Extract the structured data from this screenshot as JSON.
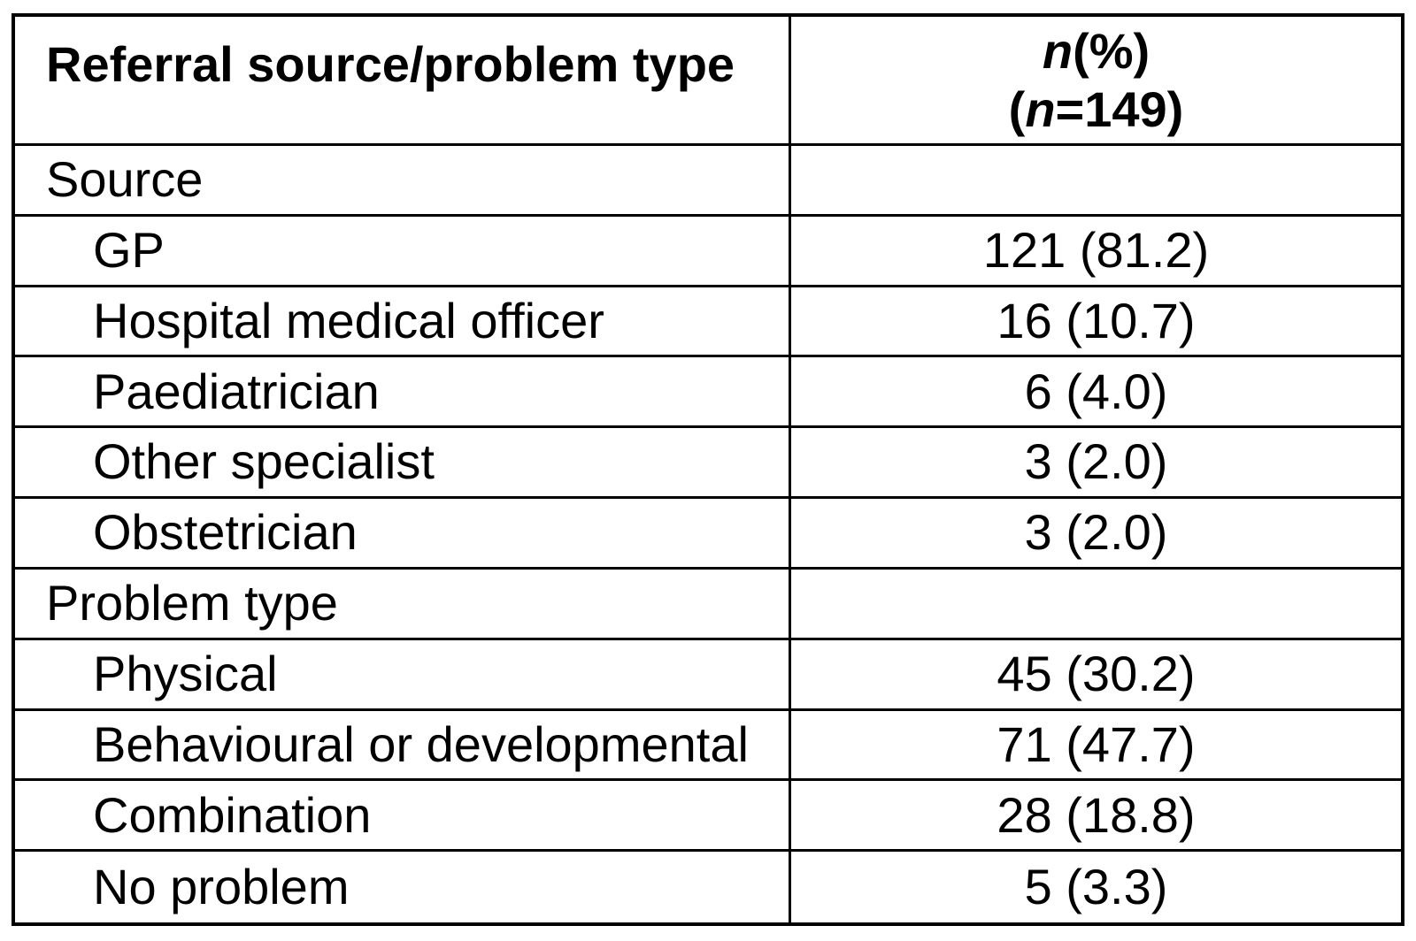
{
  "table": {
    "header": {
      "col1": "Referral source/problem type",
      "col2": {
        "line1_n": "n",
        "line1_rest": "(%)",
        "line2_open": "(",
        "line2_n": "n",
        "line2_rest": "=149)"
      }
    },
    "rows": [
      {
        "label": "Source",
        "value": "",
        "indent": false
      },
      {
        "label": "GP",
        "value": "121 (81.2)",
        "indent": true
      },
      {
        "label": "Hospital medical officer",
        "value": "16 (10.7)",
        "indent": true
      },
      {
        "label": "Paediatrician",
        "value": "6 (4.0)",
        "indent": true
      },
      {
        "label": "Other specialist",
        "value": "3 (2.0)",
        "indent": true
      },
      {
        "label": "Obstetrician",
        "value": "3 (2.0)",
        "indent": true
      },
      {
        "label": "Problem type",
        "value": "",
        "indent": false
      },
      {
        "label": "Physical",
        "value": "45 (30.2)",
        "indent": true
      },
      {
        "label": "Behavioural or developmental",
        "value": "71 (47.7)",
        "indent": true
      },
      {
        "label": "Combination",
        "value": "28 (18.8)",
        "indent": true
      },
      {
        "label": "No problem",
        "value": "5 (3.3)",
        "indent": true
      }
    ]
  },
  "chart_data": {
    "type": "table",
    "columns": [
      "Referral source/problem type",
      "n(%) (n=149)"
    ],
    "total_n": 149,
    "sections": [
      {
        "section": "Source",
        "items": [
          {
            "label": "GP",
            "n": 121,
            "percent": 81.2
          },
          {
            "label": "Hospital medical officer",
            "n": 16,
            "percent": 10.7
          },
          {
            "label": "Paediatrician",
            "n": 6,
            "percent": 4.0
          },
          {
            "label": "Other specialist",
            "n": 3,
            "percent": 2.0
          },
          {
            "label": "Obstetrician",
            "n": 3,
            "percent": 2.0
          }
        ]
      },
      {
        "section": "Problem type",
        "items": [
          {
            "label": "Physical",
            "n": 45,
            "percent": 30.2
          },
          {
            "label": "Behavioural or developmental",
            "n": 71,
            "percent": 47.7
          },
          {
            "label": "Combination",
            "n": 28,
            "percent": 18.8
          },
          {
            "label": "No problem",
            "n": 5,
            "percent": 3.3
          }
        ]
      }
    ]
  },
  "colors": {
    "border": "#000000",
    "text": "#000000",
    "background": "#ffffff"
  }
}
